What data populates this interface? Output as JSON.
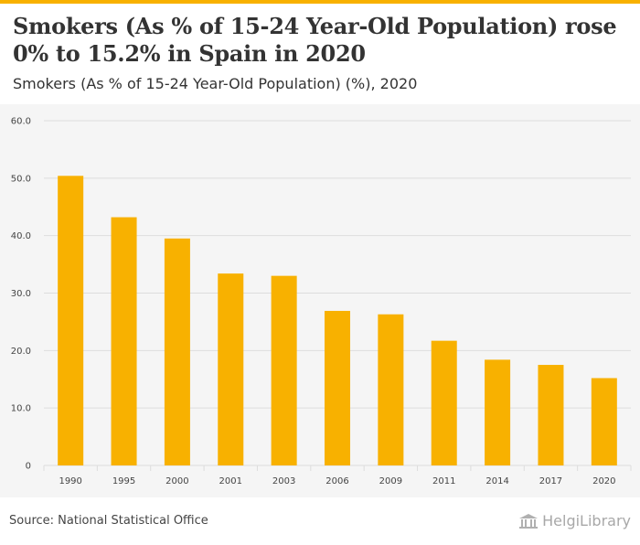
{
  "header": {
    "title": "Smokers (As % of 15-24 Year-Old Population) rose 0% to 15.2% in Spain in 2020",
    "subtitle": "Smokers (As % of 15-24 Year-Old Population) (%), 2020"
  },
  "footer": {
    "source": "Source: National Statistical Office",
    "logo_text": "HelgiLibrary"
  },
  "colors": {
    "bar": "#f8b100",
    "accent": "#f8b100",
    "grid": "#dddddd",
    "axis_text": "#444444",
    "chart_background": "#f5f5f5"
  },
  "chart_data": {
    "type": "bar",
    "categories": [
      "1990",
      "1995",
      "2000",
      "2001",
      "2003",
      "2006",
      "2009",
      "2011",
      "2014",
      "2017",
      "2020"
    ],
    "values": [
      50.4,
      43.2,
      39.5,
      33.4,
      33.0,
      26.9,
      26.3,
      21.7,
      18.4,
      17.5,
      15.2
    ],
    "y_ticks": [
      "0",
      "10.0",
      "20.0",
      "30.0",
      "40.0",
      "50.0",
      "60.0"
    ],
    "ylim": [
      0,
      60
    ],
    "grid": true,
    "xlabel": "",
    "ylabel": ""
  }
}
